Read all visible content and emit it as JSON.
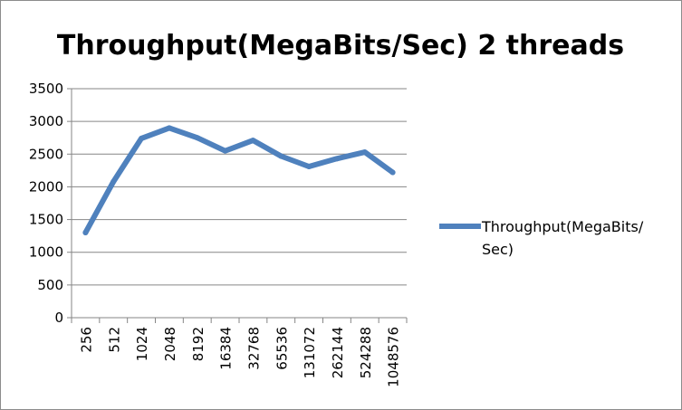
{
  "chart_data": {
    "type": "line",
    "title": "Throughput(MegaBits/Sec) 2 threads",
    "xlabel": "",
    "ylabel": "",
    "categories": [
      "256",
      "512",
      "1024",
      "2048",
      "8192",
      "16384",
      "32768",
      "65536",
      "131072",
      "262144",
      "524288",
      "1048576"
    ],
    "series": [
      {
        "name": "Throughput(MegaBits/Sec)",
        "legend_lines": [
          "Throughput(MegaBits/",
          "Sec)"
        ],
        "color": "#4f81bd",
        "values": [
          1300,
          2080,
          2740,
          2900,
          2750,
          2550,
          2710,
          2470,
          2310,
          2430,
          2530,
          2220
        ]
      }
    ],
    "ylim": [
      0,
      3500
    ],
    "yticks": [
      "0",
      "500",
      "1000",
      "1500",
      "2000",
      "2500",
      "3000",
      "3500"
    ],
    "grid": true,
    "legend_position": "right"
  }
}
